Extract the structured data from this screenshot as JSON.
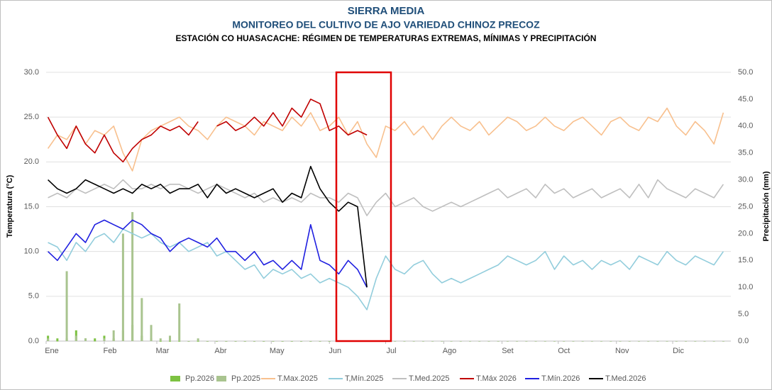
{
  "chart_data": {
    "type": "line",
    "title": "SIERRA MEDIA",
    "subtitle": "MONITOREO DEL CULTIVO DE AJO VARIEDAD CHINOZ PRECOZ",
    "heading": "ESTACIÓN CO HUASACACHE: RÉGIMEN DE TEMPERATURAS EXTREMAS, MÍNIMAS Y PRECIPITACIÓN",
    "y_label": "Temperatura (°C)",
    "y2_label": "Precipitación (mm)",
    "legend": "bottom",
    "grid": true,
    "xlim": [
      0,
      365
    ],
    "xticks": [
      {
        "value": 0,
        "label": "Ene"
      },
      {
        "value": 31,
        "label": "Feb"
      },
      {
        "value": 59,
        "label": "Mar"
      },
      {
        "value": 90,
        "label": "Abr"
      },
      {
        "value": 120,
        "label": "May"
      },
      {
        "value": 151,
        "label": "Jun"
      },
      {
        "value": 181,
        "label": "Jul"
      },
      {
        "value": 212,
        "label": "Ago"
      },
      {
        "value": 243,
        "label": "Set"
      },
      {
        "value": 273,
        "label": "Oct"
      },
      {
        "value": 304,
        "label": "Nov"
      },
      {
        "value": 334,
        "label": "Dic"
      }
    ],
    "ylim": [
      0,
      30
    ],
    "yticks": [
      {
        "value": 0,
        "label": "0.0"
      },
      {
        "value": 5,
        "label": "5.0"
      },
      {
        "value": 10,
        "label": "10.0"
      },
      {
        "value": 15,
        "label": "15.0"
      },
      {
        "value": 20,
        "label": "20.0"
      },
      {
        "value": 25,
        "label": "25.0"
      },
      {
        "value": 30,
        "label": "30.0"
      }
    ],
    "y2lim": [
      0,
      50
    ],
    "y2ticks": [
      {
        "value": 0,
        "label": "0.0"
      },
      {
        "value": 5,
        "label": "5.0"
      },
      {
        "value": 10,
        "label": "10.0"
      },
      {
        "value": 15,
        "label": "15.0"
      },
      {
        "value": 20,
        "label": "20.0"
      },
      {
        "value": 25,
        "label": "25.0"
      },
      {
        "value": 30,
        "label": "30.0"
      },
      {
        "value": 35,
        "label": "35.0"
      },
      {
        "value": 40,
        "label": "40.0"
      },
      {
        "value": 45,
        "label": "45.0"
      },
      {
        "value": 50,
        "label": "50.0"
      }
    ],
    "x": [
      1,
      6,
      11,
      16,
      21,
      26,
      31,
      36,
      41,
      46,
      51,
      56,
      61,
      66,
      71,
      76,
      81,
      86,
      91,
      96,
      101,
      106,
      111,
      116,
      121,
      126,
      131,
      136,
      141,
      146,
      151,
      156,
      161,
      166,
      171,
      176,
      181,
      186,
      191,
      196,
      201,
      206,
      211,
      216,
      221,
      226,
      231,
      236,
      241,
      246,
      251,
      256,
      261,
      266,
      271,
      276,
      281,
      286,
      291,
      296,
      301,
      306,
      311,
      316,
      321,
      326,
      331,
      336,
      341,
      346,
      351,
      356,
      361
    ],
    "series": [
      {
        "name": "Pp.2026",
        "kind": "bar",
        "axis": "y2",
        "color": "#7dc242",
        "values": [
          1,
          0.5,
          0.5,
          2,
          0.5,
          0.5,
          1,
          0.5,
          2,
          3,
          1,
          0.5,
          0,
          0,
          0,
          0,
          0,
          0,
          0,
          0,
          0,
          0,
          0,
          0,
          0,
          0,
          0,
          0,
          0,
          0,
          0,
          0,
          0,
          0,
          0,
          null,
          null,
          null,
          null,
          null,
          null,
          null,
          null,
          null,
          null,
          null,
          null,
          null,
          null,
          null,
          null,
          null,
          null,
          null,
          null,
          null,
          null,
          null,
          null,
          null,
          null,
          null,
          null,
          null,
          null,
          null,
          null,
          null,
          null,
          null,
          null,
          null,
          null
        ]
      },
      {
        "name": "Pp.2025",
        "kind": "bar",
        "axis": "y2",
        "color": "#a9c48f",
        "values": [
          0.5,
          0,
          13,
          1,
          0.5,
          0,
          0.5,
          2,
          20,
          24,
          8,
          3,
          0.5,
          1,
          7,
          0,
          0.5,
          0,
          0,
          0,
          0,
          0,
          0,
          0,
          0,
          0,
          0,
          0,
          0,
          0,
          0,
          0,
          0,
          0,
          0,
          0,
          0,
          0,
          0,
          0,
          0,
          0,
          0,
          0,
          0,
          0,
          0,
          0,
          0,
          0,
          0,
          0,
          0,
          0,
          0,
          0,
          0,
          0,
          0,
          0,
          0,
          0,
          0,
          0,
          0,
          0,
          0,
          0,
          0,
          0,
          0,
          0,
          0
        ]
      },
      {
        "name": "T.Max.2025",
        "color": "#f8c08e",
        "values": [
          21.5,
          23,
          22.5,
          24,
          22,
          23.5,
          23,
          24,
          21,
          19,
          22.5,
          23.5,
          24,
          24.5,
          25,
          24,
          23.5,
          22.5,
          24,
          25,
          24.5,
          24,
          23,
          24.5,
          24,
          23.5,
          25,
          24,
          25.5,
          23.5,
          24,
          25,
          23,
          24.5,
          22,
          20.5,
          24,
          23.5,
          24.5,
          23,
          24,
          22.5,
          24,
          25,
          24,
          23.5,
          24.5,
          23,
          24,
          25,
          24.5,
          23.5,
          24,
          25,
          24,
          23.5,
          24.5,
          25,
          24,
          23,
          24.5,
          25,
          24,
          23.5,
          25,
          24.5,
          26,
          24,
          23,
          24.5,
          23.5,
          22,
          25.5
        ]
      },
      {
        "name": "T,Mín.2025",
        "color": "#92cddc",
        "values": [
          11,
          10.5,
          9,
          11,
          10,
          11.5,
          12,
          11,
          12.5,
          12,
          11.5,
          12,
          11,
          10.5,
          11,
          10,
          10.5,
          11,
          9.5,
          10,
          9,
          8,
          8.5,
          7,
          8,
          7.5,
          8,
          7,
          7.5,
          6.5,
          7,
          6.5,
          6,
          5,
          3.5,
          7,
          9.5,
          8,
          7.5,
          8.5,
          9,
          7.5,
          6.5,
          7,
          6.5,
          7,
          7.5,
          8,
          8.5,
          9.5,
          9,
          8.5,
          9,
          10,
          8,
          9.5,
          8.5,
          9,
          8,
          9,
          8.5,
          9,
          8,
          9.5,
          9,
          8.5,
          10,
          9,
          8.5,
          9.5,
          9,
          8.5,
          10
        ]
      },
      {
        "name": "T.Med.2025",
        "color": "#bfbfbf",
        "values": [
          16,
          16.5,
          16,
          17,
          16.5,
          17,
          17.5,
          17,
          18,
          17,
          17,
          17.5,
          17,
          17.5,
          17.5,
          17,
          16.5,
          17,
          17.5,
          17,
          16.5,
          16,
          16.5,
          15.5,
          16,
          15.5,
          16,
          15.5,
          16.5,
          16,
          16,
          15.5,
          16.5,
          16,
          14,
          15.5,
          16.5,
          15,
          15.5,
          16,
          15,
          14.5,
          15,
          15.5,
          15,
          15.5,
          16,
          16.5,
          17,
          16,
          16.5,
          17,
          16,
          17.5,
          16.5,
          17,
          16,
          16.5,
          17,
          16,
          16.5,
          17,
          16,
          17.5,
          16,
          18,
          17,
          16.5,
          16,
          17,
          16.5,
          16,
          17.5
        ]
      },
      {
        "name": "T.Máx 2026",
        "color": "#c00000",
        "values": [
          25,
          23,
          21.5,
          24,
          22,
          21,
          23,
          21,
          20,
          21.5,
          22.5,
          23,
          24,
          23.5,
          24,
          23,
          24.5,
          null,
          24,
          24.5,
          23.5,
          24,
          25,
          24,
          25.5,
          24,
          26,
          25,
          27,
          26.5,
          23.5,
          24,
          23,
          23.5,
          23,
          null,
          null,
          null,
          null,
          null,
          null,
          null,
          null,
          null,
          null,
          null,
          null,
          null,
          null,
          null,
          null,
          null,
          null,
          null,
          null,
          null,
          null,
          null,
          null,
          null,
          null,
          null,
          null,
          null,
          null,
          null,
          null,
          null,
          null,
          null,
          null,
          null,
          null
        ]
      },
      {
        "name": "T.Mín.2026",
        "color": "#1f1fe0",
        "values": [
          10,
          9,
          10.5,
          12,
          11,
          13,
          13.5,
          13,
          12.5,
          13.5,
          13,
          12,
          11.5,
          10,
          11,
          11.5,
          11,
          10.5,
          11.5,
          10,
          10,
          9,
          10,
          8.5,
          9,
          8,
          9,
          8,
          13,
          9,
          8.5,
          7.5,
          9,
          8,
          6,
          null,
          null,
          null,
          null,
          null,
          null,
          null,
          null,
          null,
          null,
          null,
          null,
          null,
          null,
          null,
          null,
          null,
          null,
          null,
          null,
          null,
          null,
          null,
          null,
          null,
          null,
          null,
          null,
          null,
          null,
          null,
          null,
          null,
          null,
          null,
          null,
          null,
          null
        ]
      },
      {
        "name": "T.Med.2026",
        "color": "#000000",
        "values": [
          18,
          17,
          16.5,
          17,
          18,
          17.5,
          17,
          16.5,
          17,
          16.5,
          17.5,
          17,
          17.5,
          16.5,
          17,
          17,
          17.5,
          16,
          17.5,
          16.5,
          17,
          16.5,
          16,
          16.5,
          17,
          15.5,
          16.5,
          16,
          19.5,
          17,
          15.5,
          14.5,
          15.5,
          15,
          6,
          null,
          null,
          null,
          null,
          null,
          null,
          null,
          null,
          null,
          null,
          null,
          null,
          null,
          null,
          null,
          null,
          null,
          null,
          null,
          null,
          null,
          null,
          null,
          null,
          null,
          null,
          null,
          null,
          null,
          null,
          null,
          null,
          null,
          null,
          null,
          null,
          null,
          null
        ]
      }
    ]
  }
}
